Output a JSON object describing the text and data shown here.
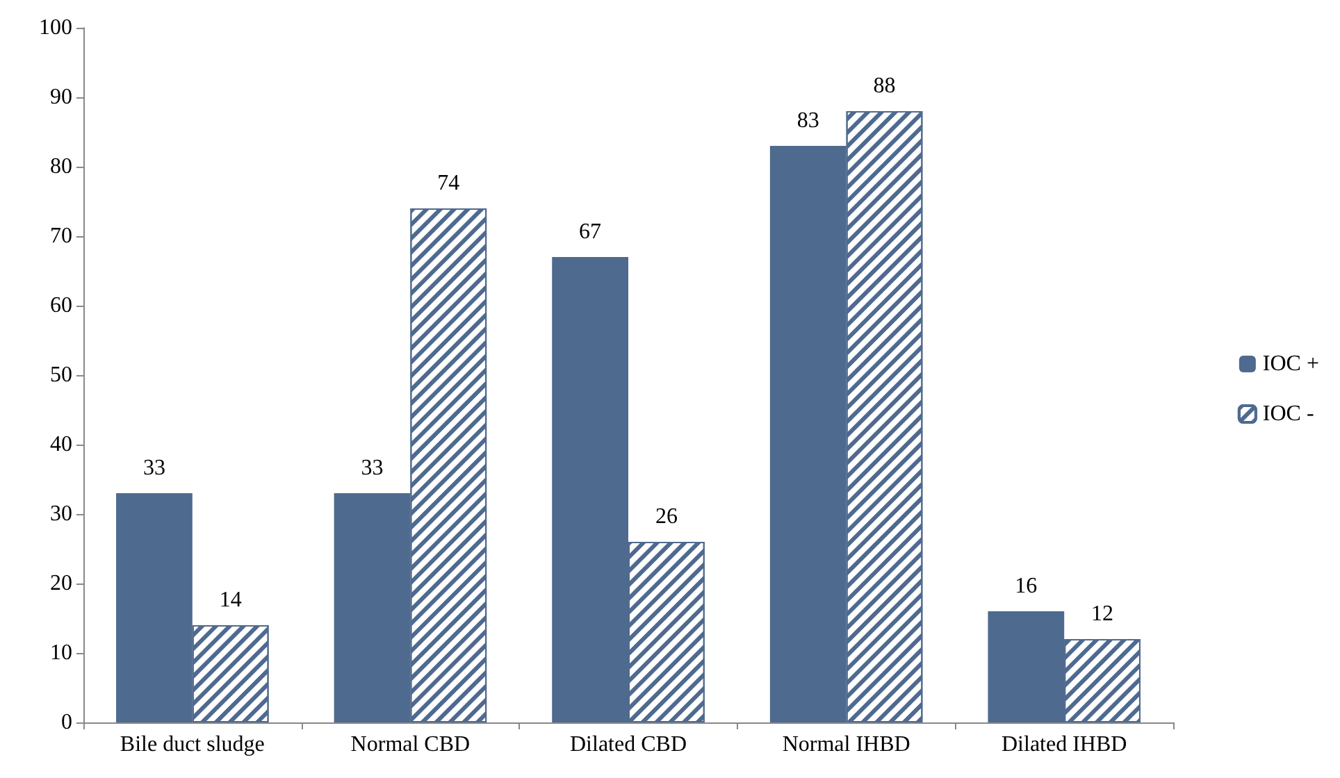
{
  "chart_data": {
    "type": "bar",
    "categories": [
      "Bile duct sludge",
      "Normal CBD",
      "Dilated CBD",
      "Normal IHBD",
      "Dilated IHBD"
    ],
    "series": [
      {
        "name": "IOC +",
        "color": "#4f6a8f",
        "values": [
          33,
          33,
          67,
          83,
          16
        ]
      },
      {
        "name": "IOC -",
        "color": "#4f6a8f",
        "values": [
          14,
          74,
          26,
          88,
          12
        ]
      }
    ],
    "ylim": [
      0,
      100
    ],
    "yticks": [
      0,
      10,
      20,
      30,
      40,
      50,
      60,
      70,
      80,
      90,
      100
    ],
    "grid": false,
    "legend": "right",
    "data_labels": true
  }
}
